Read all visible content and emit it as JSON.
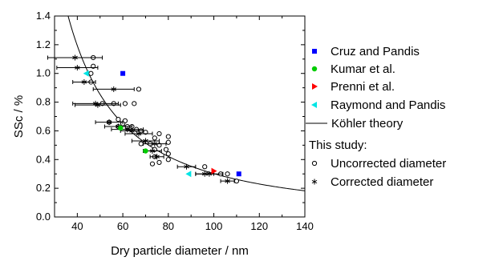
{
  "chart_data": {
    "type": "scatter",
    "title": "",
    "xlabel": "Dry particle diameter / nm",
    "ylabel": "SSc / %",
    "xlim": [
      30,
      140
    ],
    "ylim": [
      0.0,
      1.4
    ],
    "xticks": [
      "40",
      "60",
      "80",
      "100",
      "120",
      "140"
    ],
    "yticks": [
      "0.0",
      "0.2",
      "0.4",
      "0.6",
      "0.8",
      "1.0",
      "1.2",
      "1.4"
    ],
    "grid": false,
    "legend_placement": "right",
    "legend_header": "This study:",
    "series": [
      {
        "name": "Cruz and Pandis",
        "marker": "square",
        "color": "#0000ff",
        "points": [
          [
            60,
            1.0
          ],
          [
            111,
            0.3
          ]
        ]
      },
      {
        "name": "Kumar et al.",
        "marker": "circle",
        "color": "#00cc00",
        "points": [
          [
            59,
            0.62
          ],
          [
            70,
            0.46
          ]
        ]
      },
      {
        "name": "Prenni et al.",
        "marker": "triangle-right",
        "color": "#ff0000",
        "points": [
          [
            100,
            0.32
          ]
        ]
      },
      {
        "name": "Raymond and Pandis",
        "marker": "triangle-left",
        "color": "#00e5e5",
        "points": [
          [
            44,
            1.0
          ],
          [
            89,
            0.3
          ]
        ]
      },
      {
        "name": "Köhler theory",
        "type": "line",
        "color": "#000000"
      },
      {
        "name": "Uncorrected diameter",
        "marker": "open-circle",
        "color": "#000000",
        "points": [
          [
            47,
            1.11
          ],
          [
            47,
            1.05
          ],
          [
            46,
            1.0
          ],
          [
            46,
            0.94
          ],
          [
            67,
            0.89
          ],
          [
            51,
            0.79
          ],
          [
            56,
            0.79
          ],
          [
            61,
            0.79
          ],
          [
            65,
            0.79
          ],
          [
            58,
            0.68
          ],
          [
            61,
            0.67
          ],
          [
            54,
            0.66
          ],
          [
            60,
            0.65
          ],
          [
            58,
            0.63
          ],
          [
            62,
            0.63
          ],
          [
            64,
            0.63
          ],
          [
            66,
            0.61
          ],
          [
            68,
            0.6
          ],
          [
            70,
            0.59
          ],
          [
            76,
            0.58
          ],
          [
            80,
            0.56
          ],
          [
            74,
            0.55
          ],
          [
            80,
            0.52
          ],
          [
            68,
            0.51
          ],
          [
            72,
            0.51
          ],
          [
            76,
            0.5
          ],
          [
            74,
            0.47
          ],
          [
            79,
            0.47
          ],
          [
            80,
            0.44
          ],
          [
            74,
            0.42
          ],
          [
            80,
            0.4
          ],
          [
            76,
            0.38
          ],
          [
            73,
            0.37
          ],
          [
            96,
            0.35
          ],
          [
            103,
            0.3
          ],
          [
            106,
            0.3
          ],
          [
            110,
            0.25
          ]
        ]
      },
      {
        "name": "Corrected diameter",
        "marker": "asterisk",
        "color": "#000000",
        "points": [
          [
            39,
            1.11
          ],
          [
            40,
            1.04
          ],
          [
            43,
            0.94
          ],
          [
            56,
            0.89
          ],
          [
            48,
            0.79
          ],
          [
            49,
            0.78
          ],
          [
            54,
            0.66
          ],
          [
            58,
            0.63
          ],
          [
            62,
            0.61
          ],
          [
            64,
            0.6
          ],
          [
            67,
            0.58
          ],
          [
            70,
            0.53
          ],
          [
            74,
            0.51
          ],
          [
            73,
            0.46
          ],
          [
            75,
            0.42
          ],
          [
            88,
            0.35
          ],
          [
            96,
            0.3
          ],
          [
            98,
            0.3
          ],
          [
            106,
            0.25
          ]
        ],
        "xerr": [
          12,
          9,
          5,
          9,
          10,
          10,
          6,
          6,
          7,
          5,
          6,
          6,
          5,
          4,
          3,
          4,
          4,
          6,
          3
        ]
      }
    ]
  }
}
